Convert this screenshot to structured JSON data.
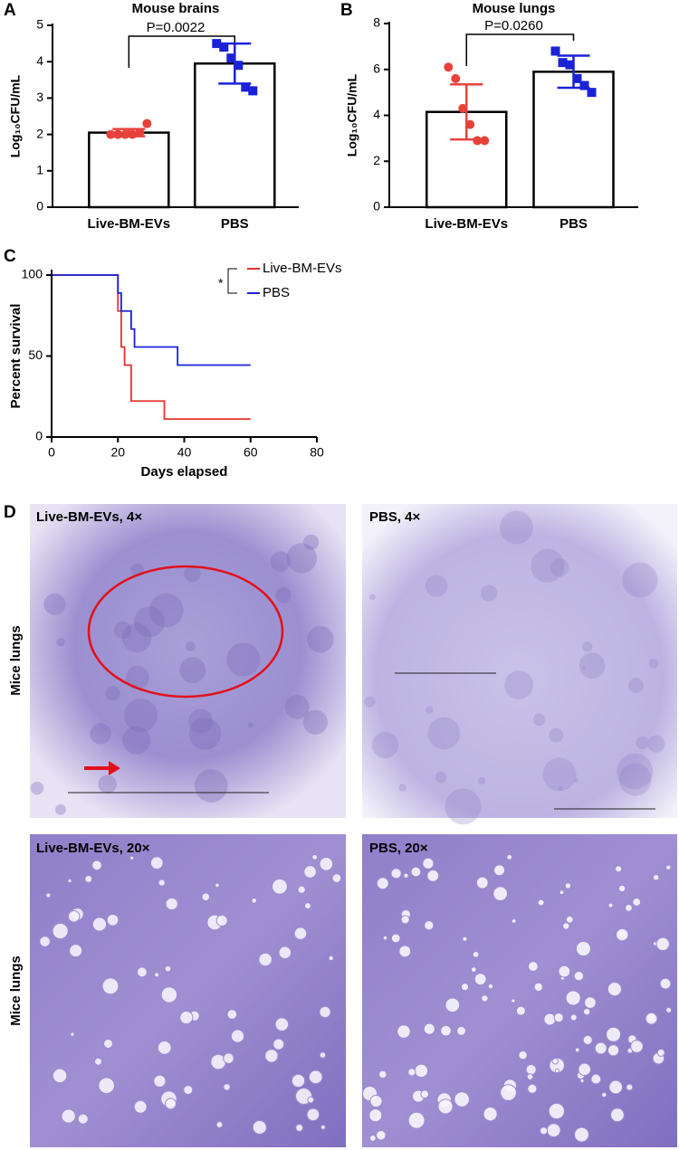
{
  "chart_data": [
    {
      "type": "bar",
      "title": "Mouse brains",
      "ylabel": "Log₁₀CFU/mL",
      "categories": [
        "Live-BM-EVs",
        "PBS"
      ],
      "values": [
        2.05,
        3.95
      ],
      "errors": [
        0.1,
        0.55
      ],
      "points": [
        [
          2.0,
          2.0,
          2.0,
          2.0,
          2.05,
          2.3
        ],
        [
          4.5,
          4.4,
          4.1,
          3.9,
          3.3,
          3.2
        ]
      ],
      "point_colors": [
        "#e8413c",
        "#1a22d8"
      ],
      "markers": [
        "circle",
        "square"
      ],
      "annotation": "P=0.0022",
      "ylim": [
        0,
        5
      ],
      "yticks": [
        0,
        1,
        2,
        3,
        4,
        5
      ]
    },
    {
      "type": "bar",
      "title": "Mouse lungs",
      "ylabel": "Log₁₀CFU/mL",
      "categories": [
        "Live-BM-EVs",
        "PBS"
      ],
      "values": [
        4.15,
        5.9
      ],
      "errors": [
        1.2,
        0.7
      ],
      "points": [
        [
          6.1,
          5.6,
          4.3,
          3.6,
          2.9,
          2.9
        ],
        [
          6.8,
          6.3,
          6.2,
          5.6,
          5.3,
          5.0
        ]
      ],
      "point_colors": [
        "#e8413c",
        "#1a22d8"
      ],
      "markers": [
        "circle",
        "square"
      ],
      "annotation": "P=0.0260",
      "ylim": [
        0,
        8
      ],
      "yticks": [
        0,
        2,
        4,
        6,
        8
      ]
    },
    {
      "type": "line",
      "xlabel": "Days elapsed",
      "ylabel": "Percent survival",
      "annotation": "*",
      "series": [
        {
          "name": "Live-BM-EVs",
          "color": "#e8322c",
          "x": [
            0,
            20,
            20,
            21,
            21,
            22,
            22,
            24,
            24,
            34,
            34,
            60
          ],
          "values": [
            100,
            100,
            77.8,
            77.8,
            55.6,
            55.6,
            44.4,
            44.4,
            22.2,
            22.2,
            11.1,
            11.1
          ]
        },
        {
          "name": "PBS",
          "color": "#1a22d8",
          "x": [
            0,
            20,
            20,
            21,
            21,
            24,
            24,
            25,
            25,
            38,
            38,
            60
          ],
          "values": [
            100,
            100,
            88.9,
            88.9,
            77.8,
            77.8,
            66.7,
            66.7,
            55.6,
            55.6,
            44.4,
            44.4
          ]
        }
      ],
      "xlim": [
        0,
        80
      ],
      "xticks": [
        0,
        20,
        40,
        60,
        80
      ],
      "ylim": [
        0,
        100
      ],
      "yticks": [
        0,
        50,
        100
      ]
    }
  ],
  "panels": {
    "letters": [
      "A",
      "B",
      "C",
      "D"
    ]
  },
  "histology": {
    "row_label": "Mice lungs",
    "labels": [
      "Live-BM-EVs, 4×",
      "PBS, 4×",
      "Live-BM-EVs, 20×",
      "PBS, 20×"
    ]
  }
}
